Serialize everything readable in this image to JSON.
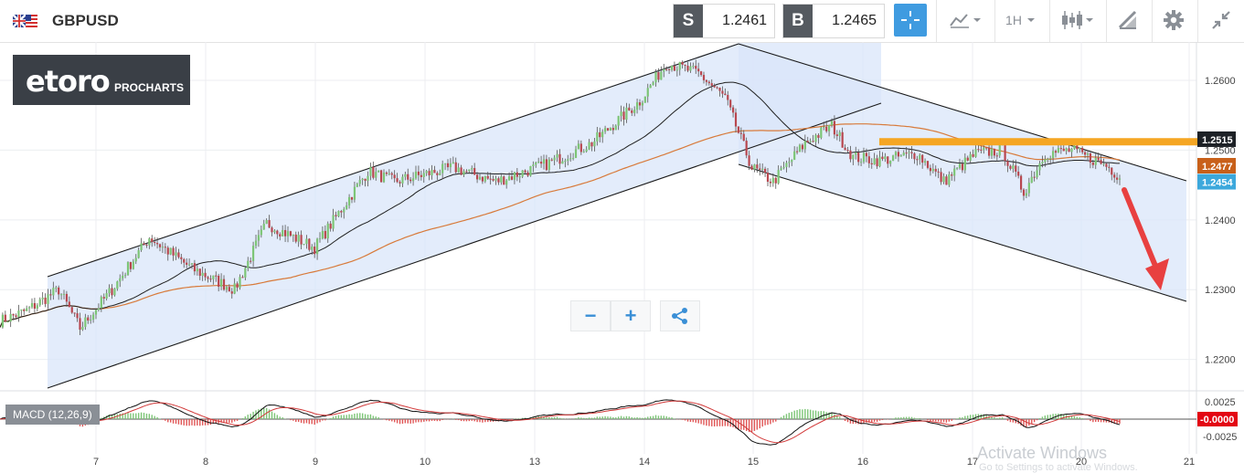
{
  "header": {
    "symbol": "GBPUSD",
    "sell_tag": "S",
    "sell_price": "1.2461",
    "buy_tag": "B",
    "buy_price": "1.2465",
    "timeframe": "1H",
    "icons": [
      "uk-us-flag-icon",
      "crosshair-icon",
      "chart-style-icon",
      "candlestick-icon",
      "drawing-tool-icon",
      "gear-icon",
      "collapse-icon"
    ]
  },
  "logo": {
    "brand": "etoro",
    "sub": "PROCHARTS"
  },
  "controls": {
    "zoom_out": "−",
    "zoom_in": "+"
  },
  "macd": {
    "label": "MACD (12,26,9)",
    "ticks": [
      "0.0025",
      "-0.0025"
    ],
    "current": "-0.0000",
    "current_color": "#e30613"
  },
  "watermark": {
    "title": "Activate Windows",
    "subtitle": "Go to Settings to activate Windows."
  },
  "chart_data": {
    "type": "candlestick",
    "instrument": "GBPUSD",
    "interval": "1H",
    "x_ticks": [
      "7",
      "8",
      "9",
      "10",
      "13",
      "14",
      "15",
      "16",
      "17",
      "20",
      "21"
    ],
    "y_ticks": [
      "1.2600",
      "1.2500",
      "1.2400",
      "1.2300",
      "1.2200"
    ],
    "ylim": [
      1.2155,
      1.2655
    ],
    "price_tags": [
      {
        "value": 1.2515,
        "label": "1.2515",
        "color": "#1d2126"
      },
      {
        "value": 1.2477,
        "label": "1.2477",
        "color": "#c8601a"
      },
      {
        "value": 1.2454,
        "label": "1.2454",
        "color": "#3ca8dc"
      }
    ],
    "resistance_level": {
      "value": 1.2512,
      "color": "#f5a623"
    },
    "ma_fast_color": "#1f1f1f",
    "ma_slow_color": "#d87a3a",
    "bull_color": "#7cc576",
    "bear_color": "#b8474f",
    "channel_fill": "#d9e5f9",
    "arrow_color": "#e84040",
    "anchors": [
      [
        0,
        1.2255
      ],
      [
        10,
        1.227
      ],
      [
        22,
        1.23
      ],
      [
        30,
        1.2245
      ],
      [
        42,
        1.23
      ],
      [
        56,
        1.2375
      ],
      [
        72,
        1.233
      ],
      [
        88,
        1.23
      ],
      [
        100,
        1.2395
      ],
      [
        118,
        1.236
      ],
      [
        138,
        1.247
      ],
      [
        148,
        1.2455
      ],
      [
        170,
        1.2475
      ],
      [
        186,
        1.2455
      ],
      [
        205,
        1.248
      ],
      [
        222,
        1.251
      ],
      [
        240,
        1.257
      ],
      [
        250,
        1.2625
      ],
      [
        262,
        1.261
      ],
      [
        272,
        1.2575
      ],
      [
        282,
        1.2475
      ],
      [
        290,
        1.2455
      ],
      [
        302,
        1.251
      ],
      [
        312,
        1.2535
      ],
      [
        320,
        1.249
      ],
      [
        330,
        1.2485
      ],
      [
        344,
        1.2495
      ],
      [
        354,
        1.2455
      ],
      [
        366,
        1.2495
      ],
      [
        376,
        1.25
      ],
      [
        384,
        1.244
      ],
      [
        392,
        1.2495
      ],
      [
        402,
        1.25
      ],
      [
        415,
        1.2478
      ],
      [
        420,
        1.2462
      ]
    ]
  }
}
